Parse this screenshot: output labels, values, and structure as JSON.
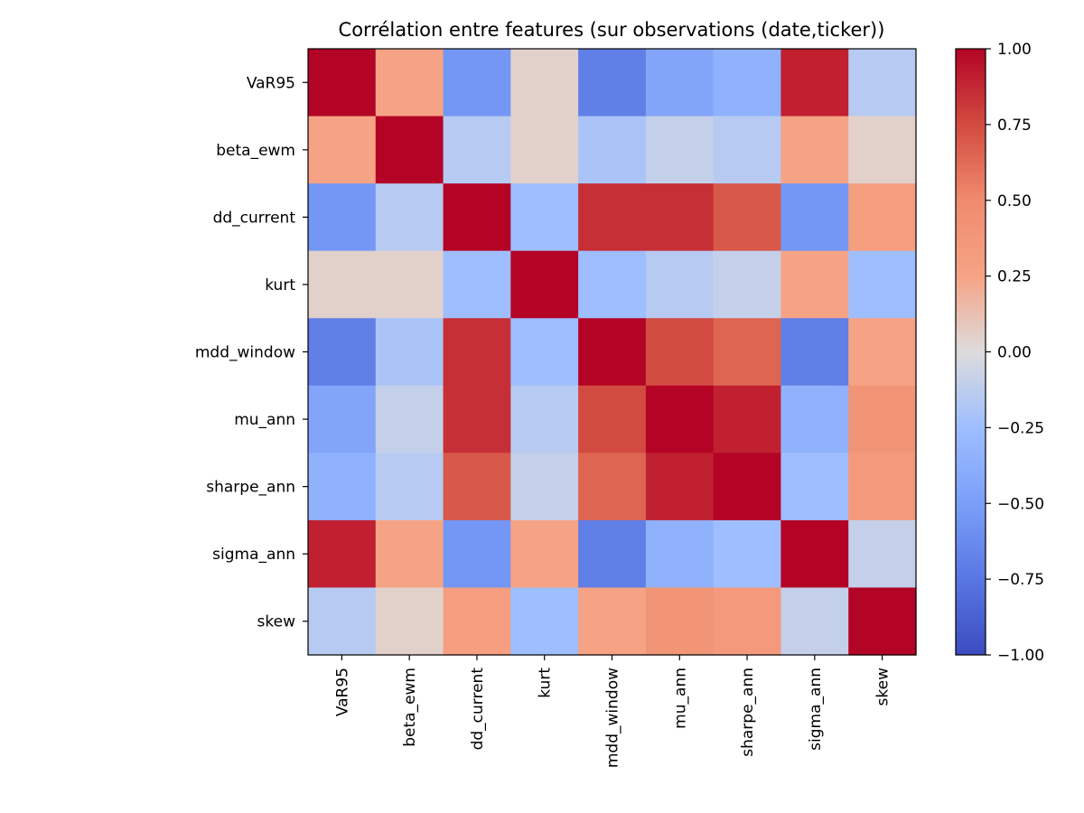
{
  "chart_data": {
    "type": "heatmap",
    "title": "Corrélation entre features (sur observations (date,ticker))",
    "xlabel": "",
    "ylabel": "",
    "labels": [
      "VaR95",
      "beta_ewm",
      "dd_current",
      "kurt",
      "mdd_window",
      "mu_ann",
      "sharpe_ann",
      "sigma_ann",
      "skew"
    ],
    "matrix": [
      [
        1.0,
        0.25,
        -0.55,
        0.05,
        -0.7,
        -0.45,
        -0.35,
        0.9,
        -0.15
      ],
      [
        0.25,
        1.0,
        -0.15,
        0.05,
        -0.2,
        -0.1,
        -0.15,
        0.25,
        0.05
      ],
      [
        -0.55,
        -0.15,
        1.0,
        -0.25,
        0.85,
        0.85,
        0.7,
        -0.55,
        0.3
      ],
      [
        0.05,
        0.05,
        -0.25,
        1.0,
        -0.25,
        -0.15,
        -0.1,
        0.25,
        -0.25
      ],
      [
        -0.7,
        -0.2,
        0.85,
        -0.25,
        1.0,
        0.75,
        0.65,
        -0.7,
        0.25
      ],
      [
        -0.45,
        -0.1,
        0.85,
        -0.15,
        0.75,
        1.0,
        0.9,
        -0.35,
        0.4
      ],
      [
        -0.35,
        -0.15,
        0.7,
        -0.1,
        0.65,
        0.9,
        1.0,
        -0.25,
        0.35
      ],
      [
        0.9,
        0.25,
        -0.55,
        0.25,
        -0.7,
        -0.35,
        -0.25,
        1.0,
        -0.1
      ],
      [
        -0.15,
        0.05,
        0.3,
        -0.25,
        0.25,
        0.4,
        0.35,
        -0.1,
        1.0
      ]
    ],
    "colormap": "coolwarm",
    "vmin": -1.0,
    "vmax": 1.0,
    "colorbar_ticks": [
      "1.00",
      "0.75",
      "0.50",
      "0.25",
      "0.00",
      "−0.25",
      "−0.50",
      "−0.75",
      "−1.00"
    ],
    "grid": false,
    "legend": "colorbar-right"
  }
}
